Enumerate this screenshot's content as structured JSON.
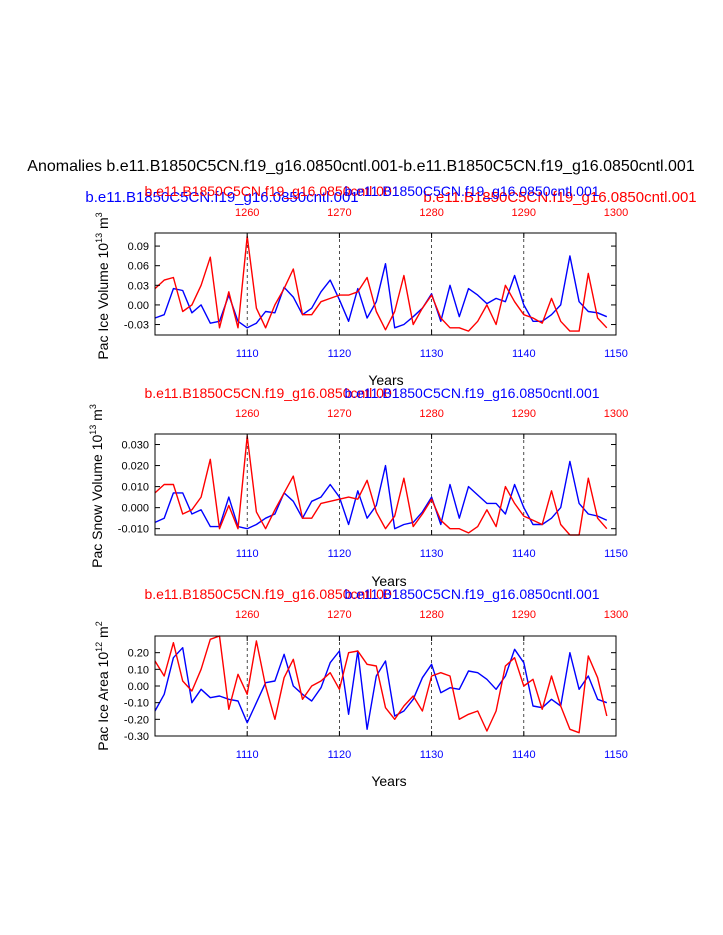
{
  "figure": {
    "main_title": "Anomalies b.e11.B1850C5CN.f19_g16.0850cntl.001-b.e11.B1850C5CN.f19_g16.0850cntl.001",
    "legend_blue": "b.e11.B1850C5CN.f19_g16.0850cntl.001",
    "legend_red": "b.e11.B1850C5CN.f19_g16.0850cntl.001",
    "colors": {
      "blue": "#0000ff",
      "red": "#ff0000",
      "axis": "#000000"
    }
  },
  "chart_data": [
    {
      "type": "line",
      "ylabel_text": "Pac Ice Volume 10",
      "ylabel_exp": "13",
      "ylabel_unit": " m",
      "ylabel_unit_exp": "3",
      "xlabel": "Years",
      "top_label_red": "b.e11.B1850C5CN.f19_g16.0850cntl.001",
      "top_label_blue": "b.e11.B1850C5CN.f19_g16.0850cntl.001",
      "ylim": [
        -0.046,
        0.11
      ],
      "yticks": [
        -0.03,
        0.0,
        0.03,
        0.06,
        0.09
      ],
      "ytick_labels": [
        "-0.03",
        "0.00",
        "0.03",
        "0.06",
        "0.09"
      ],
      "xlim": [
        1100,
        1150
      ],
      "xticks": [
        1110,
        1120,
        1130,
        1140,
        1150
      ],
      "xtick_labels": [
        "1110",
        "1120",
        "1130",
        "1140",
        "1150"
      ],
      "top_xticks": [
        1260,
        1270,
        1280,
        1290,
        1300
      ],
      "top_xtick_labels": [
        "1260",
        "1270",
        "1280",
        "1290",
        "1300"
      ],
      "series": [
        {
          "name": "blue",
          "x_start": 1100,
          "values": [
            -0.02,
            -0.015,
            0.025,
            0.022,
            -0.012,
            0.0,
            -0.028,
            -0.025,
            0.015,
            -0.025,
            -0.035,
            -0.028,
            -0.01,
            -0.012,
            0.027,
            0.012,
            -0.015,
            -0.005,
            0.02,
            0.038,
            0.008,
            -0.025,
            0.025,
            -0.02,
            0.005,
            0.063,
            -0.035,
            -0.03,
            -0.018,
            -0.005,
            0.017,
            -0.025,
            0.03,
            -0.018,
            0.025,
            0.015,
            0.002,
            0.01,
            0.005,
            0.045,
            0.0,
            -0.025,
            -0.025,
            -0.015,
            0.0,
            0.075,
            0.005,
            -0.01,
            -0.012,
            -0.018
          ]
        },
        {
          "name": "red",
          "x_start": 1100,
          "values": [
            0.025,
            0.038,
            0.042,
            -0.01,
            0.0,
            0.03,
            0.073,
            -0.035,
            0.02,
            -0.035,
            0.105,
            -0.005,
            -0.035,
            0.0,
            0.025,
            0.055,
            -0.015,
            -0.015,
            0.005,
            0.01,
            0.015,
            0.015,
            0.02,
            0.042,
            -0.01,
            -0.038,
            -0.01,
            0.045,
            -0.03,
            -0.005,
            0.015,
            -0.02,
            -0.035,
            -0.035,
            -0.04,
            -0.025,
            0.0,
            -0.03,
            0.03,
            0.005,
            -0.015,
            -0.02,
            -0.028,
            0.01,
            -0.025,
            -0.04,
            -0.04,
            0.048,
            -0.02,
            -0.035
          ]
        }
      ]
    },
    {
      "type": "line",
      "ylabel_text": "Pac Snow Volume 10",
      "ylabel_exp": "13",
      "ylabel_unit": " m",
      "ylabel_unit_exp": "3",
      "xlabel": "Years",
      "top_label_red": "b.e11.B1850C5CN.f19_g16.0850cntl.001",
      "top_label_blue": "b.e11.B1850C5CN.f19_g16.0850cntl.001",
      "ylim": [
        -0.013,
        0.035
      ],
      "yticks": [
        -0.01,
        0.0,
        0.01,
        0.02,
        0.03
      ],
      "ytick_labels": [
        "-0.010",
        "0.000",
        "0.010",
        "0.020",
        "0.030"
      ],
      "xlim": [
        1100,
        1150
      ],
      "xticks": [
        1110,
        1120,
        1130,
        1140,
        1150
      ],
      "xtick_labels": [
        "1110",
        "1120",
        "1130",
        "1140",
        "1150"
      ],
      "top_xticks": [
        1260,
        1270,
        1280,
        1290,
        1300
      ],
      "top_xtick_labels": [
        "1260",
        "1270",
        "1280",
        "1290",
        "1300"
      ],
      "series": [
        {
          "name": "blue",
          "x_start": 1100,
          "values": [
            -0.007,
            -0.005,
            0.007,
            0.007,
            -0.003,
            -0.001,
            -0.009,
            -0.009,
            0.005,
            -0.009,
            -0.01,
            -0.008,
            -0.005,
            -0.003,
            0.007,
            0.003,
            -0.005,
            0.003,
            0.005,
            0.011,
            0.005,
            -0.008,
            0.008,
            -0.005,
            0.001,
            0.02,
            -0.01,
            -0.008,
            -0.007,
            -0.002,
            0.005,
            -0.008,
            0.011,
            -0.005,
            0.01,
            0.006,
            0.002,
            0.002,
            -0.003,
            0.011,
            0.0,
            -0.008,
            -0.008,
            -0.005,
            0.0,
            0.022,
            0.002,
            -0.003,
            -0.004,
            -0.006
          ]
        },
        {
          "name": "red",
          "x_start": 1100,
          "values": [
            0.007,
            0.011,
            0.011,
            -0.003,
            -0.001,
            0.005,
            0.023,
            -0.01,
            0.001,
            -0.01,
            0.034,
            -0.002,
            -0.01,
            -0.001,
            0.007,
            0.015,
            -0.005,
            -0.005,
            0.002,
            0.003,
            0.004,
            0.005,
            0.004,
            0.013,
            -0.002,
            -0.01,
            -0.004,
            0.014,
            -0.009,
            -0.003,
            0.004,
            -0.006,
            -0.01,
            -0.01,
            -0.012,
            -0.009,
            -0.001,
            -0.009,
            0.01,
            0.002,
            -0.004,
            -0.006,
            -0.008,
            0.008,
            -0.008,
            -0.013,
            -0.013,
            0.014,
            -0.005,
            -0.01
          ]
        }
      ]
    },
    {
      "type": "line",
      "ylabel_text": "Pac Ice Area 10",
      "ylabel_exp": "12",
      "ylabel_unit": " m",
      "ylabel_unit_exp": "2",
      "xlabel": "Years",
      "top_label_red": "b.e11.B1850C5CN.f19_g16.0850cntl.001",
      "top_label_blue": "b.e11.B1850C5CN.f19_g16.0850cntl.001",
      "ylim": [
        -0.3,
        0.3
      ],
      "yticks": [
        -0.3,
        -0.2,
        -0.1,
        0.0,
        0.1,
        0.2
      ],
      "ytick_labels": [
        "-0.30",
        "-0.20",
        "-0.10",
        "0.00",
        "0.10",
        "0.20"
      ],
      "xlim": [
        1100,
        1150
      ],
      "xticks": [
        1110,
        1120,
        1130,
        1140,
        1150
      ],
      "xtick_labels": [
        "1110",
        "1120",
        "1130",
        "1140",
        "1150"
      ],
      "top_xticks": [
        1260,
        1270,
        1280,
        1290,
        1300
      ],
      "top_xtick_labels": [
        "1260",
        "1270",
        "1280",
        "1290",
        "1300"
      ],
      "series": [
        {
          "name": "blue",
          "x_start": 1100,
          "values": [
            -0.15,
            -0.05,
            0.17,
            0.23,
            -0.1,
            -0.02,
            -0.07,
            -0.06,
            -0.08,
            -0.09,
            -0.22,
            -0.1,
            0.02,
            0.03,
            0.19,
            0.0,
            -0.05,
            -0.09,
            -0.01,
            0.14,
            0.21,
            -0.17,
            0.21,
            -0.26,
            0.06,
            0.15,
            -0.18,
            -0.15,
            -0.08,
            0.05,
            0.13,
            -0.04,
            -0.01,
            -0.02,
            0.09,
            0.08,
            0.04,
            -0.02,
            0.06,
            0.22,
            0.14,
            -0.12,
            -0.13,
            -0.08,
            -0.12,
            0.2,
            -0.02,
            0.06,
            -0.08,
            -0.1
          ]
        },
        {
          "name": "red",
          "x_start": 1100,
          "values": [
            0.15,
            0.06,
            0.26,
            0.03,
            -0.03,
            0.1,
            0.28,
            0.3,
            -0.14,
            0.07,
            -0.05,
            0.27,
            0.0,
            -0.2,
            0.05,
            0.16,
            -0.08,
            0.0,
            0.03,
            0.08,
            -0.02,
            0.2,
            0.21,
            0.13,
            0.12,
            -0.13,
            -0.2,
            -0.12,
            -0.06,
            -0.15,
            0.06,
            0.08,
            0.06,
            -0.2,
            -0.17,
            -0.15,
            -0.27,
            -0.15,
            0.12,
            0.17,
            0.0,
            0.04,
            -0.14,
            0.06,
            -0.12,
            -0.26,
            -0.28,
            0.18,
            0.05,
            -0.18
          ]
        }
      ]
    }
  ]
}
